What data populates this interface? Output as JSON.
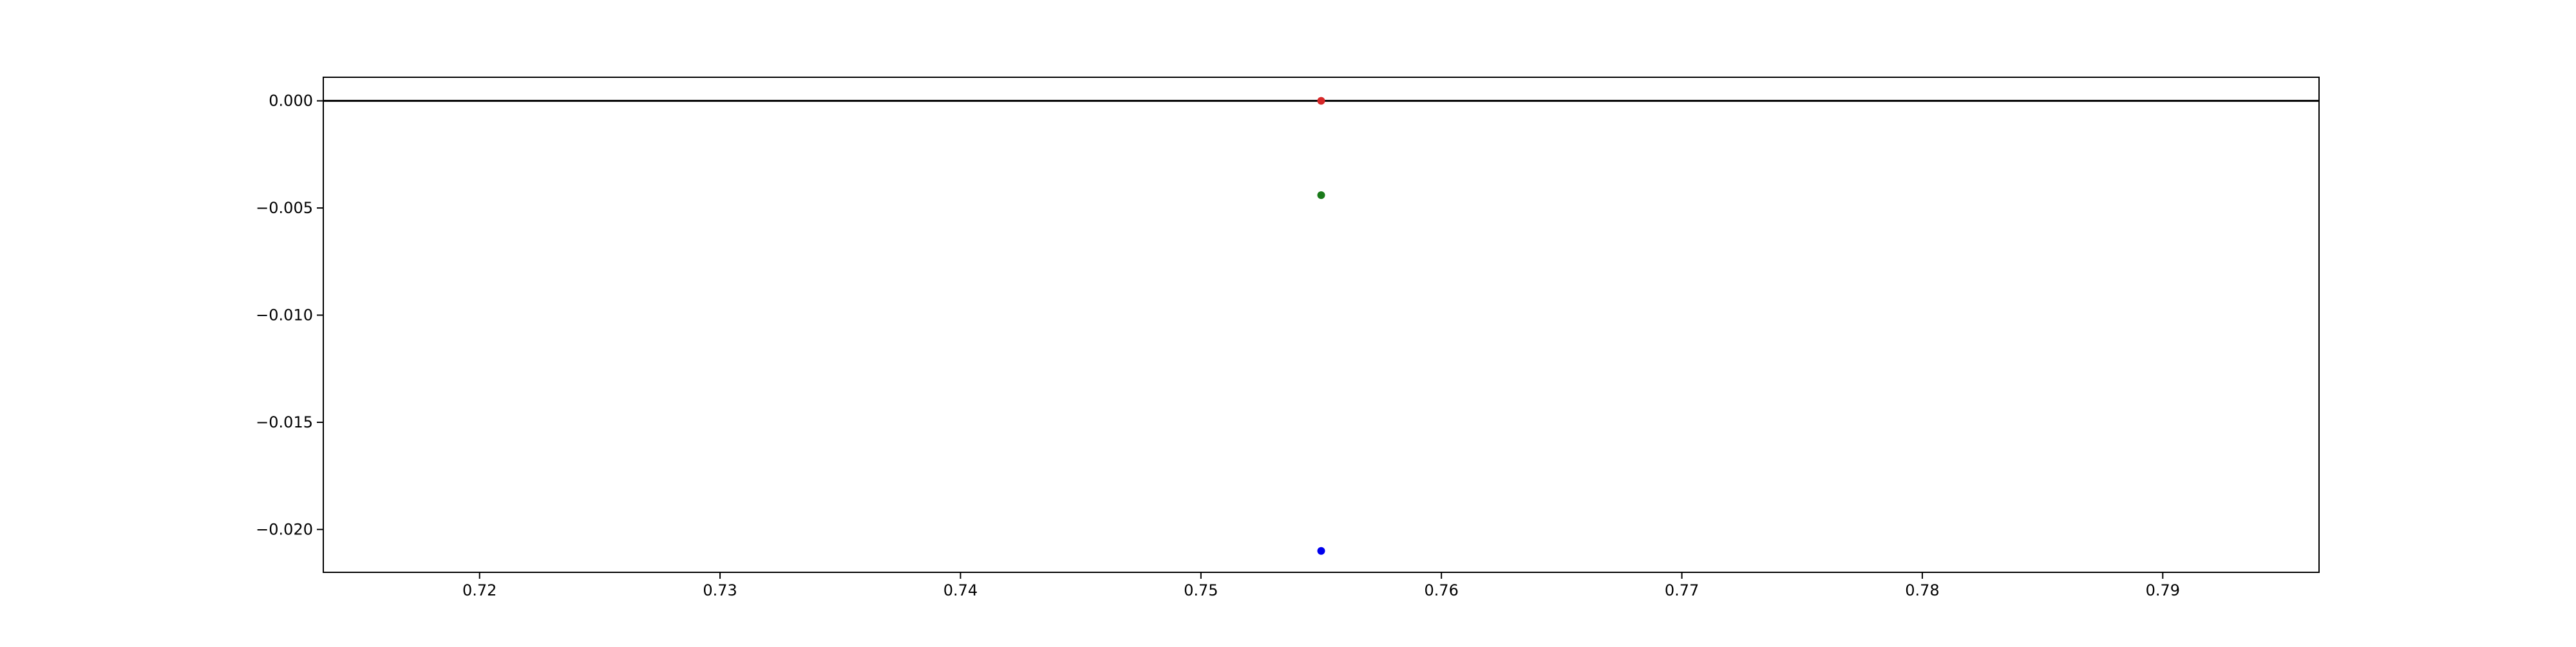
{
  "chart_data": {
    "type": "scatter",
    "title": "",
    "xlabel": "",
    "ylabel": "",
    "xlim": [
      0.7135,
      0.7965
    ],
    "ylim": [
      -0.022,
      0.0011
    ],
    "x_ticks": [
      0.72,
      0.73,
      0.74,
      0.75,
      0.76,
      0.77,
      0.78,
      0.79
    ],
    "x_tick_labels": [
      "0.72",
      "0.73",
      "0.74",
      "0.75",
      "0.76",
      "0.77",
      "0.78",
      "0.79"
    ],
    "y_ticks": [
      0.0,
      -0.005,
      -0.01,
      -0.015,
      -0.02
    ],
    "y_tick_labels": [
      "0.000",
      "−0.005",
      "−0.010",
      "−0.015",
      "−0.020"
    ],
    "grid": false,
    "legend": "none",
    "reference_line": {
      "y": 0.0,
      "color": "#000000"
    },
    "points": [
      {
        "x": 0.755,
        "y": 0.0,
        "color": "#d62728"
      },
      {
        "x": 0.755,
        "y": -0.0044,
        "color": "#1a7a1a"
      },
      {
        "x": 0.755,
        "y": -0.021,
        "color": "#0000ee"
      }
    ]
  }
}
